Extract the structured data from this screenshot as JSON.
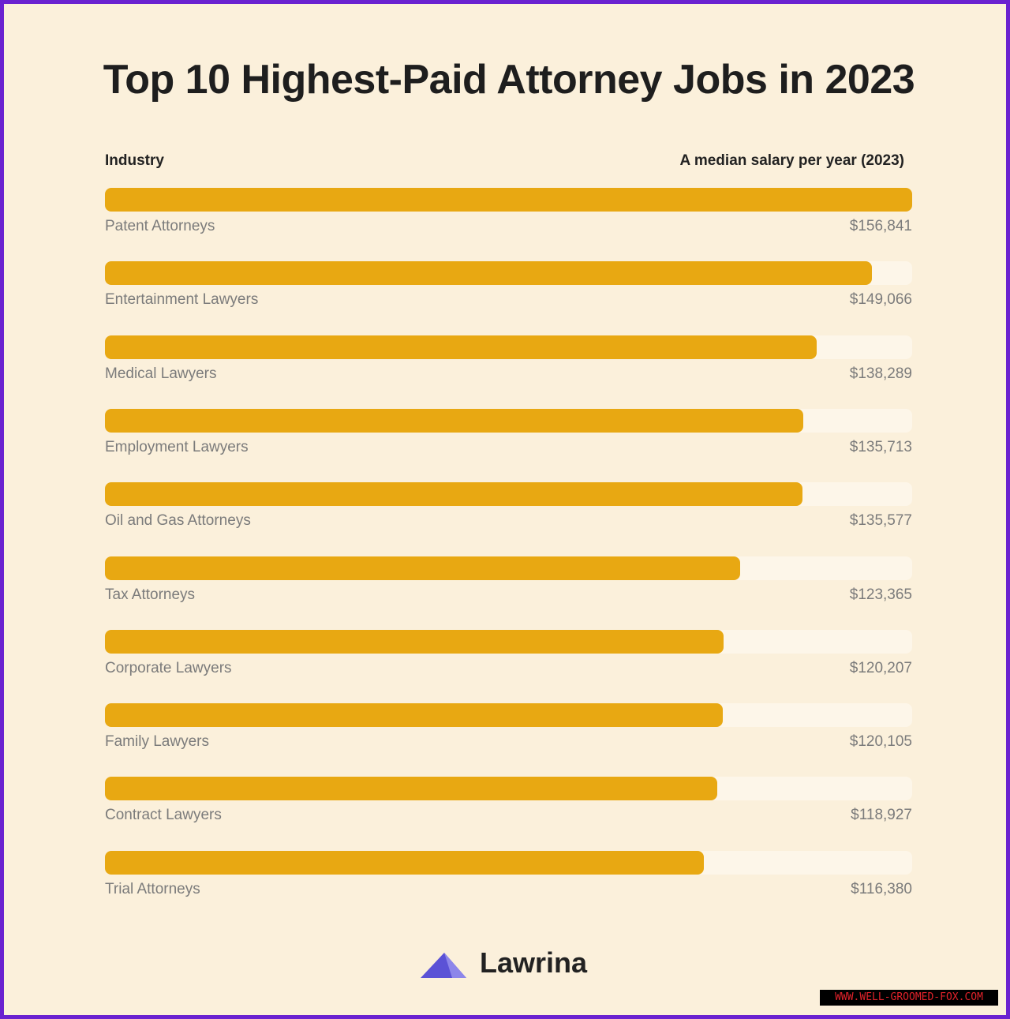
{
  "chart_data": {
    "type": "bar",
    "orientation": "horizontal",
    "title": "Top 10 Highest-Paid Attorney Jobs in 2023",
    "category_header": "Industry",
    "value_header": "A median salary per year (2023)",
    "categories": [
      "Patent Attorneys",
      "Entertainment Lawyers",
      "Medical Lawyers",
      "Employment Lawyers",
      "Oil and Gas Attorneys",
      "Tax Attorneys",
      "Corporate Lawyers",
      "Family Lawyers",
      "Contract Lawyers",
      "Trial Attorneys"
    ],
    "values": [
      156841,
      149066,
      138289,
      135713,
      135577,
      123365,
      120207,
      120105,
      118927,
      116380
    ],
    "value_labels": [
      "$156,841",
      "$149,066",
      "$138,289",
      "$135,713",
      "$135,577",
      "$123,365",
      "$120,207",
      "$120,105",
      "$118,927",
      "$116,380"
    ],
    "bar_color": "#e8a812",
    "track_color": "#fdf6e9"
  },
  "brand": {
    "name": "Lawrina",
    "logo_icon": "lawrina-triangle-icon",
    "logo_color": "#5b52d6"
  },
  "watermark": "WWW.WELL-GROOMED-FOX.COM"
}
